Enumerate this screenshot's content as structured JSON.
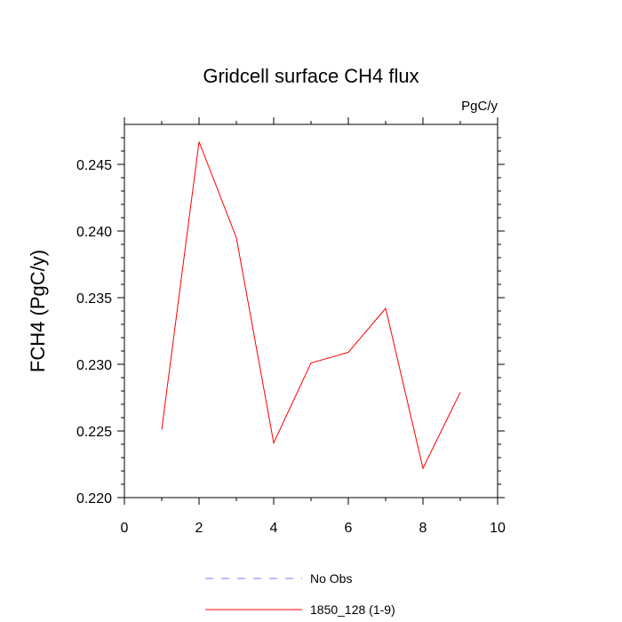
{
  "chart_data": {
    "type": "line",
    "title": "Gridcell surface CH4 flux",
    "units_label": "PgC/y",
    "xlabel": "",
    "ylabel": "FCH4  (PgC/y)",
    "xlim": [
      0,
      10
    ],
    "ylim": [
      0.22,
      0.248
    ],
    "x_ticks": [
      0,
      2,
      4,
      6,
      8,
      10
    ],
    "x_tick_labels": [
      "0",
      "2",
      "4",
      "6",
      "8",
      "10"
    ],
    "y_ticks": [
      0.22,
      0.225,
      0.23,
      0.235,
      0.24,
      0.245
    ],
    "y_tick_labels": [
      "0.220",
      "0.225",
      "0.230",
      "0.235",
      "0.240",
      "0.245"
    ],
    "grid": false,
    "legend_position": "bottom",
    "series": [
      {
        "name": "1850_128 (1-9)",
        "color": "#ff0000",
        "style": "solid",
        "x": [
          1,
          2,
          3,
          4,
          5,
          6,
          7,
          8,
          9
        ],
        "y": [
          0.2251,
          0.2467,
          0.2395,
          0.2241,
          0.2301,
          0.2309,
          0.2342,
          0.2222,
          0.2279
        ]
      }
    ],
    "legend": [
      {
        "label": "No Obs",
        "color": "#7f7fff",
        "style": "dashed"
      },
      {
        "label": "1850_128 (1-9)",
        "color": "#ff0000",
        "style": "solid"
      }
    ]
  }
}
